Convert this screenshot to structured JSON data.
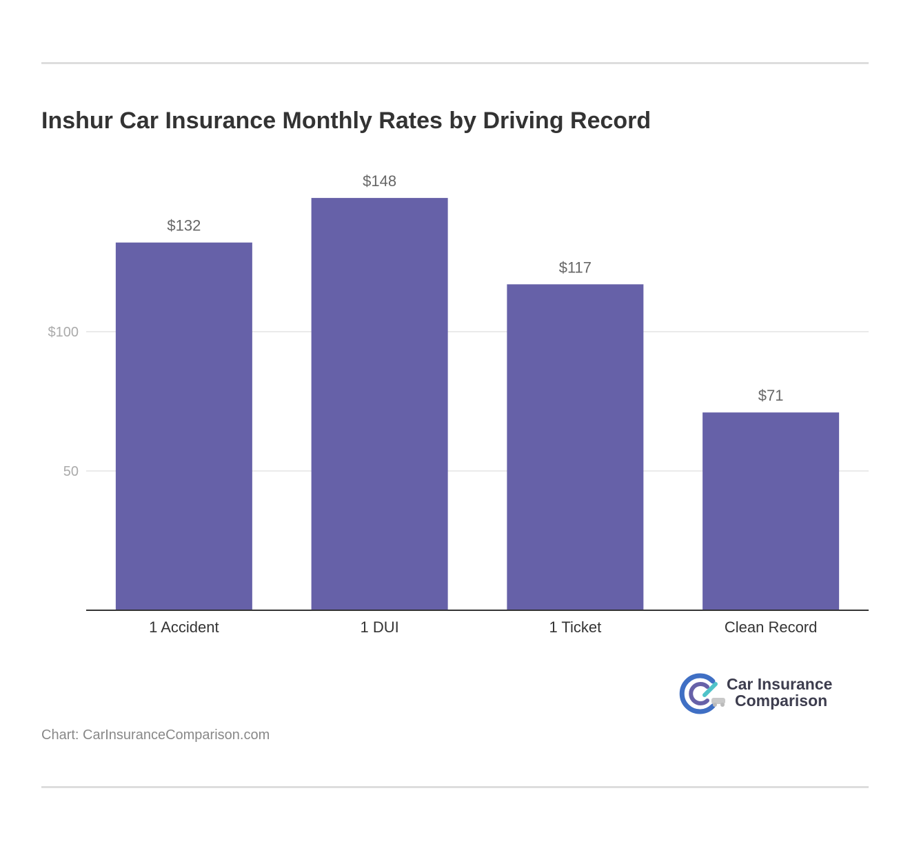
{
  "chart_data": {
    "type": "bar",
    "title": "Inshur Car Insurance Monthly Rates by Driving Record",
    "categories": [
      "1 Accident",
      "1 DUI",
      "1 Ticket",
      "Clean Record"
    ],
    "values": [
      132,
      148,
      117,
      71
    ],
    "value_labels": [
      "$132",
      "$148",
      "$117",
      "$71"
    ],
    "yticks": [
      {
        "value": 50,
        "label": "50"
      },
      {
        "value": 100,
        "label": "$100"
      }
    ],
    "ylim": [
      0,
      150
    ],
    "xlabel": "",
    "ylabel": "",
    "grid": true,
    "bar_color": "#6661a8"
  },
  "logo": {
    "line1": "Car Insurance",
    "line2": "Comparison",
    "colors": {
      "dark": "#3d3d4e",
      "teal": "#4fc3c9",
      "blue": "#3f6fc4",
      "purple": "#6661a8"
    }
  },
  "source_text": "Chart: CarInsuranceComparison.com"
}
